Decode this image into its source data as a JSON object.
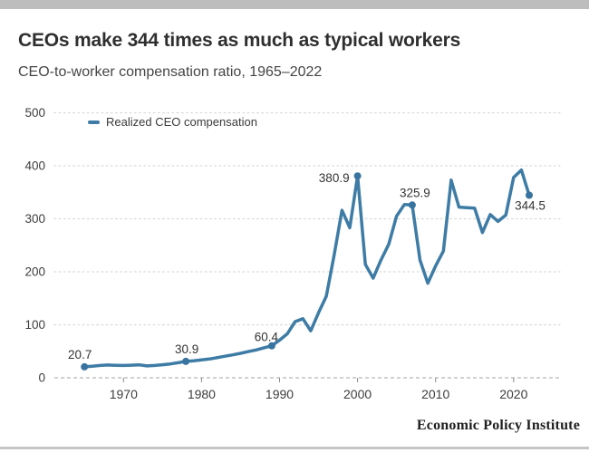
{
  "page": {
    "footer_brand": "Economic Policy Institute"
  },
  "legend": {
    "label": "Realized CEO compensation"
  },
  "colors": {
    "line": "#3e7ca6",
    "dot": "#38749f",
    "grid_dotted": "#d9d9d9",
    "zero_axis": "#c2c2c2",
    "tick": "#8a8a8a",
    "tick_text": "#3d3d3d",
    "point_label_text": "#333333",
    "title_text": "#2f2f2f",
    "top_bar": "#bdbdbd"
  },
  "chart_data": {
    "type": "line",
    "title": "CEOs make 344 times as much as typical workers",
    "subtitle": "CEO-to-worker compensation ratio, 1965–2022",
    "legend_entries": [
      "Realized CEO compensation"
    ],
    "legend_position": "top-left",
    "grid": "horizontal-dotted",
    "xlabel": "",
    "ylabel": "",
    "ylim": [
      0,
      500
    ],
    "yticks": [
      0,
      100,
      200,
      300,
      400,
      500
    ],
    "xticks": [
      1970,
      1980,
      1990,
      2000,
      2010,
      2020
    ],
    "x_range": [
      1965,
      2022
    ],
    "x": [
      1965,
      1966,
      1967,
      1968,
      1969,
      1970,
      1971,
      1972,
      1973,
      1974,
      1975,
      1976,
      1977,
      1978,
      1979,
      1980,
      1981,
      1982,
      1983,
      1984,
      1985,
      1986,
      1987,
      1988,
      1989,
      1990,
      1991,
      1992,
      1993,
      1994,
      1995,
      1996,
      1997,
      1998,
      1999,
      2000,
      2001,
      2002,
      2003,
      2004,
      2005,
      2006,
      2007,
      2008,
      2009,
      2010,
      2011,
      2012,
      2013,
      2014,
      2015,
      2016,
      2017,
      2018,
      2019,
      2020,
      2021,
      2022
    ],
    "series": [
      {
        "name": "Realized CEO compensation",
        "values": [
          20.7,
          21.8,
          23.2,
          24.1,
          23.6,
          23.2,
          23.8,
          24.5,
          22.4,
          23.2,
          24.6,
          26.2,
          28.4,
          30.9,
          32.2,
          33.8,
          35.4,
          37.9,
          40.7,
          43.2,
          46.1,
          49.4,
          52.4,
          56.6,
          60.4,
          71.0,
          83.0,
          106.0,
          111.5,
          88.5,
          122.6,
          153.8,
          232.0,
          316.0,
          283.0,
          380.9,
          214.0,
          188.0,
          222.0,
          252.0,
          305.0,
          327.0,
          325.9,
          222.0,
          178.5,
          211.0,
          239.0,
          373.0,
          322.0,
          321.0,
          320.0,
          274.0,
          308.0,
          295.0,
          307.0,
          378.0,
          392.0,
          344.5
        ]
      }
    ],
    "labeled_points": [
      {
        "year": 1965,
        "value": 20.7,
        "label": "20.7"
      },
      {
        "year": 1978,
        "value": 30.9,
        "label": "30.9"
      },
      {
        "year": 1989,
        "value": 60.4,
        "label": "60.4"
      },
      {
        "year": 2000,
        "value": 380.9,
        "label": "380.9"
      },
      {
        "year": 2007,
        "value": 325.9,
        "label": "325.9"
      },
      {
        "year": 2022,
        "value": 344.5,
        "label": "344.5"
      }
    ]
  }
}
